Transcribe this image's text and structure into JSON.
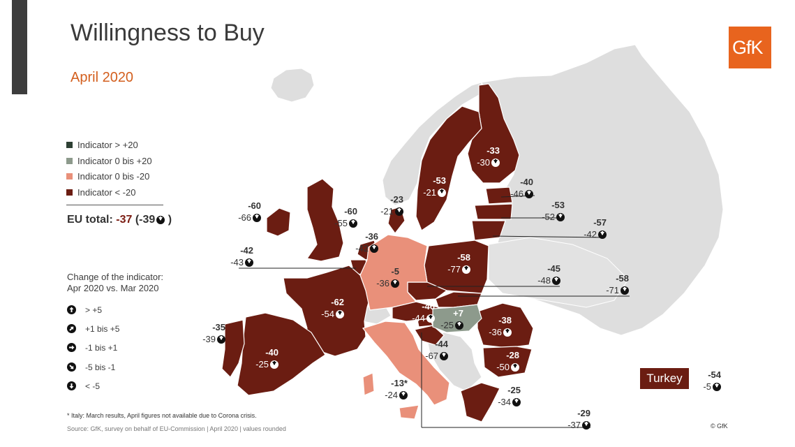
{
  "title": "Willingness to Buy",
  "subtitle": "April 2020",
  "logo": "GfK",
  "legend": [
    {
      "label": "Indicator > +20",
      "color": "#2e4034"
    },
    {
      "label": "Indicator 0 bis +20",
      "color": "#8d9a8c"
    },
    {
      "label": "Indicator 0 bis -20",
      "color": "#e9907a"
    },
    {
      "label": "Indicator < -20",
      "color": "#6b1d12"
    }
  ],
  "eu_total": {
    "label": "EU total:",
    "value": "-37",
    "change_prefix": "(-39",
    "change_suffix": ")"
  },
  "change_title_line1": "Change of the indicator:",
  "change_title_line2": "Apr 2020 vs. Mar 2020",
  "change_legend": [
    {
      "icon": "arrow-up-icon",
      "label": "> +5"
    },
    {
      "icon": "arrow-up-right-icon",
      "label": "+1 bis +5"
    },
    {
      "icon": "arrow-right-icon",
      "label": "-1 bis +1"
    },
    {
      "icon": "arrow-down-right-icon",
      "label": "-5 bis -1"
    },
    {
      "icon": "arrow-down-icon",
      "label": "< -5"
    }
  ],
  "countries": {
    "ie": {
      "value": "-60",
      "change": "-66"
    },
    "uk": {
      "value": "-60",
      "change": "-55"
    },
    "be": {
      "value": "-42",
      "change": "-43"
    },
    "nl": {
      "value": "-36",
      "change": "-42"
    },
    "dk": {
      "value": "-23",
      "change": "-21"
    },
    "se": {
      "value": "-53",
      "change": "-21"
    },
    "fi": {
      "value": "-33",
      "change": "-30"
    },
    "ee": {
      "value": "-40",
      "change": "-46"
    },
    "lv": {
      "value": "-53",
      "change": "-52"
    },
    "lt": {
      "value": "-57",
      "change": "-42"
    },
    "pl": {
      "value": "-58",
      "change": "-77"
    },
    "de": {
      "value": "-5",
      "change": "-36"
    },
    "cz": {
      "value": "-45",
      "change": "-48"
    },
    "sk": {
      "value": "-58",
      "change": "-71"
    },
    "fr": {
      "value": "-62",
      "change": "-54"
    },
    "pt": {
      "value": "-35",
      "change": "-39"
    },
    "es": {
      "value": "-40",
      "change": "-25"
    },
    "at": {
      "value": "-46",
      "change": "-44"
    },
    "hu": {
      "value": "+7",
      "change": "-25"
    },
    "ro": {
      "value": "-38",
      "change": "-36"
    },
    "hr": {
      "value": "-44",
      "change": "-67"
    },
    "bg": {
      "value": "-28",
      "change": "-50"
    },
    "it": {
      "value": "-13*",
      "change": "-24"
    },
    "gr": {
      "value": "-25",
      "change": "-34"
    },
    "cy": {
      "value": "-29",
      "change": "-37"
    },
    "tr": {
      "name": "Turkey",
      "value": "-54",
      "change": "-5"
    }
  },
  "footnote": "* Italy: March results, April figures not available due to Corona crisis.",
  "source": "Source: GfK, survey on behalf of EU-Commission | April 2020 | values rounded",
  "copyright": "© GfK"
}
